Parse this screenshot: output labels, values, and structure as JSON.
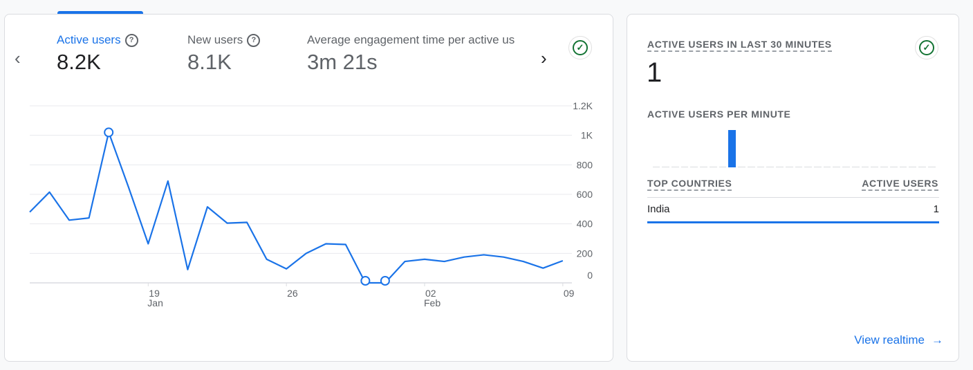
{
  "metrics": [
    {
      "label": "Active users",
      "value": "8.2K",
      "help": "?"
    },
    {
      "label": "New users",
      "value": "8.1K",
      "help": "?"
    },
    {
      "label": "Average engagement time per active us",
      "value": "3m 21s"
    }
  ],
  "nav": {
    "prev": "‹",
    "next": "›",
    "check": "✓"
  },
  "chart_data": {
    "type": "line",
    "x": [
      "Jan 13",
      "Jan 14",
      "Jan 15",
      "Jan 16",
      "Jan 17",
      "Jan 18",
      "Jan 19",
      "Jan 20",
      "Jan 21",
      "Jan 22",
      "Jan 23",
      "Jan 24",
      "Jan 25",
      "Jan 26",
      "Jan 27",
      "Jan 28",
      "Jan 29",
      "Jan 30",
      "Jan 31",
      "Feb 01",
      "Feb 02",
      "Feb 03",
      "Feb 04",
      "Feb 05",
      "Feb 06",
      "Feb 07",
      "Feb 08",
      "Feb 09"
    ],
    "series": [
      {
        "values": [
          480,
          615,
          425,
          440,
          1020,
          650,
          265,
          690,
          90,
          515,
          405,
          410,
          160,
          95,
          200,
          265,
          260,
          0,
          0,
          145,
          160,
          145,
          175,
          190,
          175,
          145,
          100,
          150
        ]
      }
    ],
    "highlighted_points": [
      4,
      17,
      18
    ],
    "ylim": [
      0,
      1200
    ],
    "yticks": [
      "0",
      "200",
      "400",
      "600",
      "800",
      "1K",
      "1.2K"
    ],
    "xticks": [
      {
        "day": "19",
        "month": "Jan",
        "index": 6
      },
      {
        "day": "26",
        "month": "",
        "index": 13
      },
      {
        "day": "02",
        "month": "Feb",
        "index": 20
      },
      {
        "day": "09",
        "month": "",
        "index": 27
      }
    ],
    "grid": true,
    "color": "#1a73e8"
  },
  "realtime": {
    "title": "ACTIVE USERS IN LAST 30 MINUTES",
    "value": "1",
    "per_minute_label": "ACTIVE USERS PER MINUTE",
    "per_minute": [
      0,
      0,
      0,
      0,
      0,
      0,
      0,
      0,
      1,
      0,
      0,
      0,
      0,
      0,
      0,
      0,
      0,
      0,
      0,
      0,
      0,
      0,
      0,
      0,
      0,
      0,
      0,
      0,
      0,
      0
    ],
    "col_country": "TOP COUNTRIES",
    "col_users": "ACTIVE USERS",
    "rows": [
      {
        "country": "India",
        "users": "1",
        "share": 1
      }
    ],
    "view_label": "View realtime",
    "arrow": "→"
  }
}
